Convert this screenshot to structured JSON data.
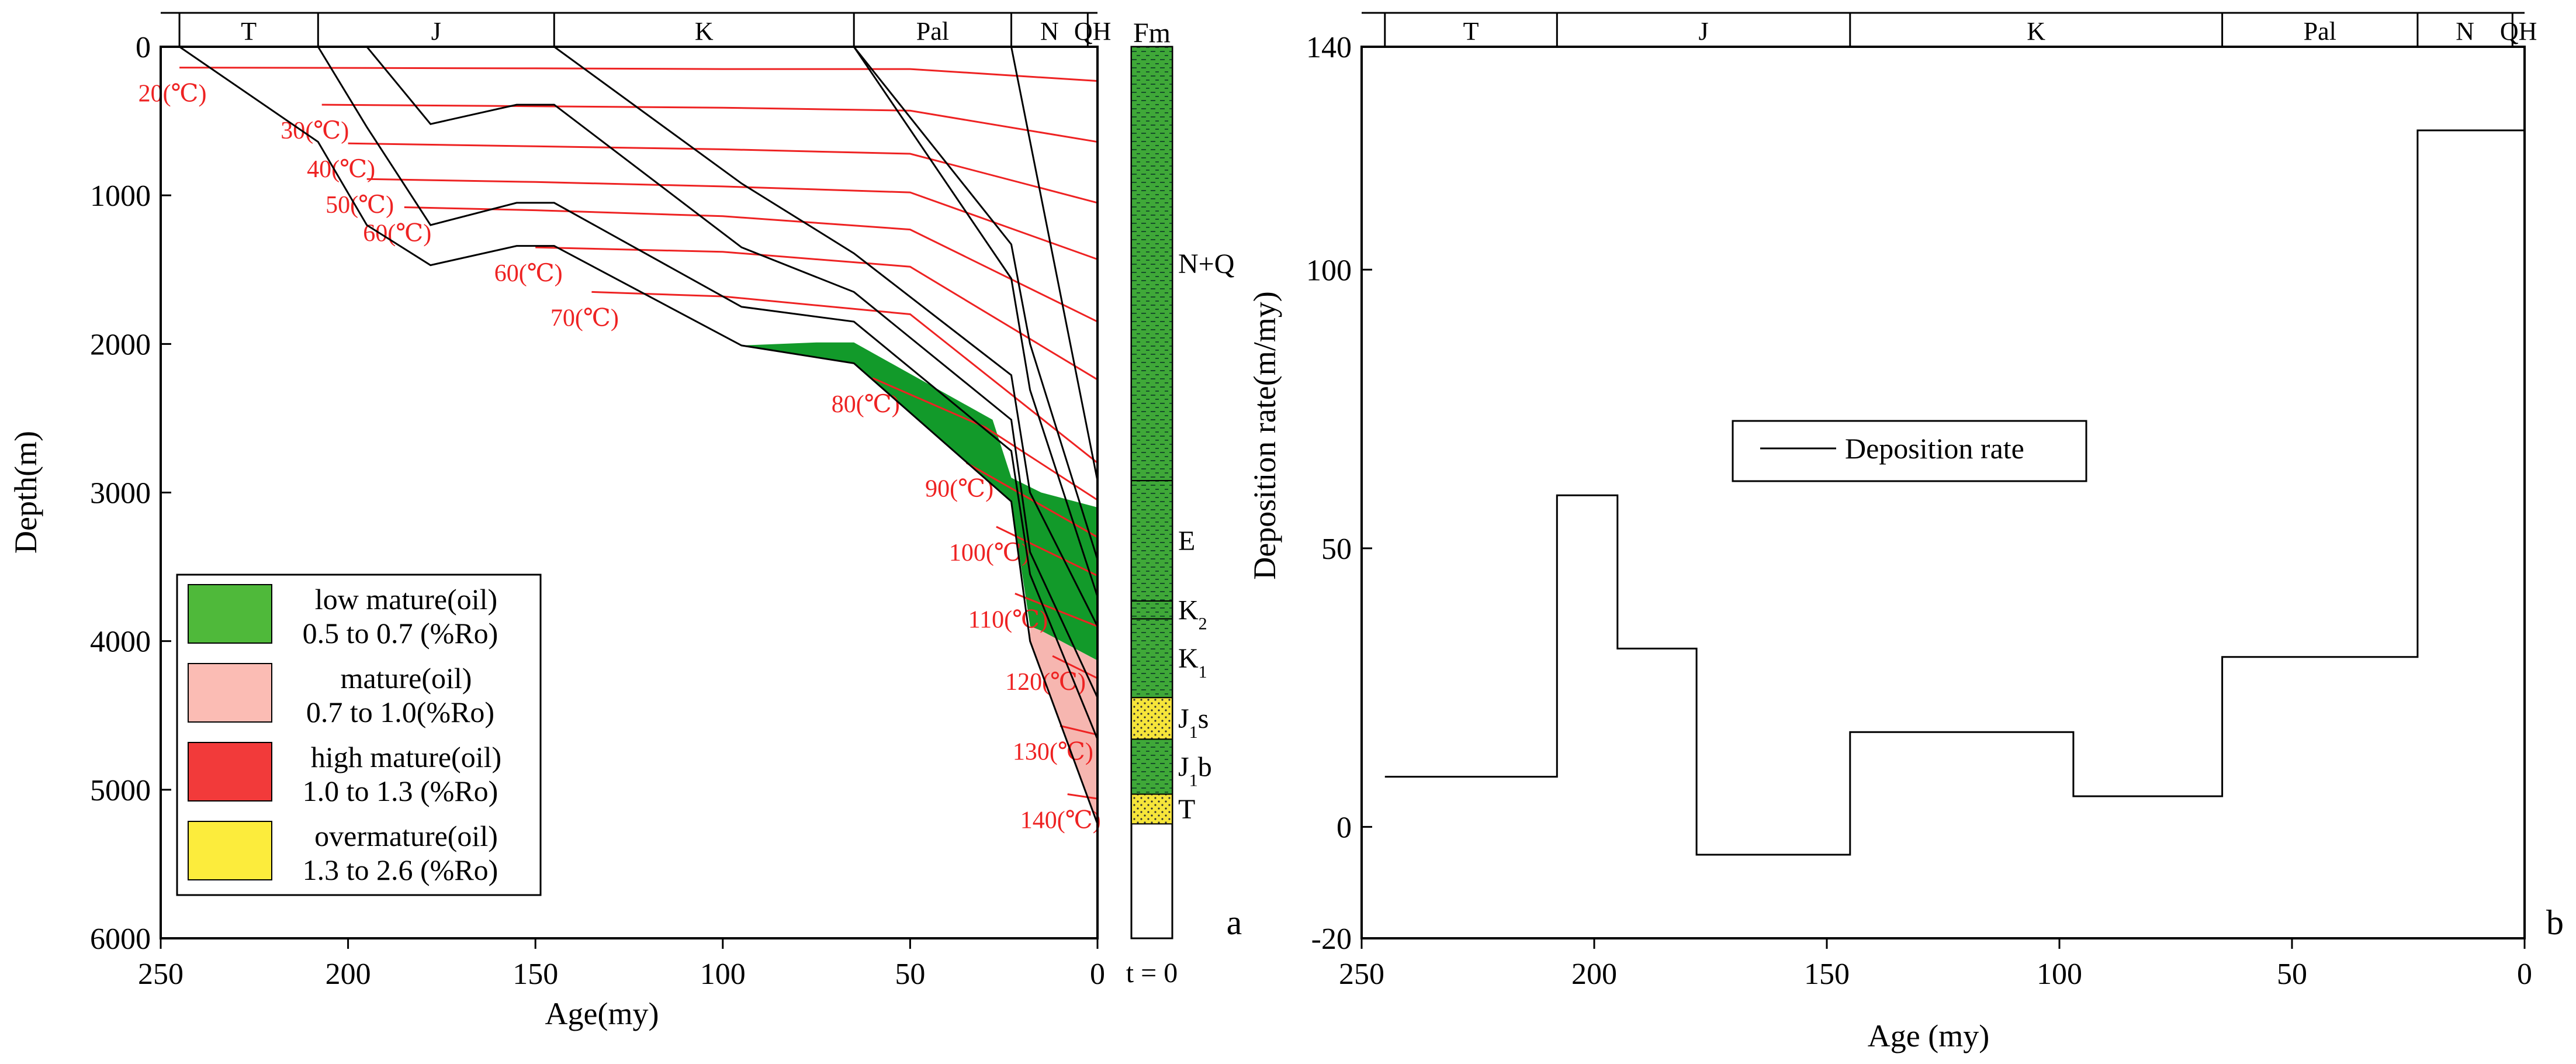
{
  "figure": {
    "panel_a_letter": "a",
    "panel_b_letter": "b"
  },
  "chart_data": [
    {
      "type": "line",
      "name": "burial-history",
      "title": "",
      "xlabel": "Age(my)",
      "ylabel": "Depth(m)",
      "xlim": [
        250,
        0
      ],
      "ylim": [
        0,
        6000
      ],
      "xticks": [
        250,
        200,
        150,
        100,
        50,
        0
      ],
      "yticks": [
        0,
        1000,
        2000,
        3000,
        4000,
        5000,
        6000
      ],
      "periods": [
        {
          "label": "T",
          "start": 245,
          "end": 208
        },
        {
          "label": "J",
          "start": 208,
          "end": 145
        },
        {
          "label": "K",
          "start": 145,
          "end": 65
        },
        {
          "label": "Pal",
          "start": 65,
          "end": 23
        },
        {
          "label": "N",
          "start": 23,
          "end": 2.6
        },
        {
          "label": "QH",
          "start": 2.6,
          "end": 0
        }
      ],
      "burial_curves": [
        {
          "name": "T",
          "points": [
            [
              245,
              0
            ],
            [
              208,
              640
            ],
            [
              195,
              1200
            ],
            [
              178,
              1470
            ],
            [
              155,
              1340
            ],
            [
              145,
              1340
            ],
            [
              95,
              2010
            ],
            [
              65,
              2130
            ],
            [
              23,
              3060
            ],
            [
              18,
              4000
            ],
            [
              0,
              5230
            ]
          ]
        },
        {
          "name": "J1b",
          "points": [
            [
              208,
              0
            ],
            [
              195,
              540
            ],
            [
              178,
              1200
            ],
            [
              155,
              1050
            ],
            [
              145,
              1050
            ],
            [
              95,
              1750
            ],
            [
              65,
              1850
            ],
            [
              23,
              2720
            ],
            [
              18,
              3550
            ],
            [
              0,
              4660
            ]
          ]
        },
        {
          "name": "J1s",
          "points": [
            [
              195,
              0
            ],
            [
              178,
              520
            ],
            [
              155,
              390
            ],
            [
              145,
              390
            ],
            [
              95,
              1350
            ],
            [
              65,
              1650
            ],
            [
              23,
              2510
            ],
            [
              18,
              3400
            ],
            [
              0,
              4380
            ]
          ]
        },
        {
          "name": "K1",
          "points": [
            [
              145,
              0
            ],
            [
              95,
              920
            ],
            [
              65,
              1390
            ],
            [
              23,
              2210
            ],
            [
              18,
              3000
            ],
            [
              0,
              3900
            ]
          ]
        },
        {
          "name": "K2",
          "points": [
            [
              65,
              0
            ],
            [
              23,
              1560
            ],
            [
              18,
              2310
            ],
            [
              0,
              3700
            ]
          ]
        },
        {
          "name": "E",
          "points": [
            [
              65,
              0
            ],
            [
              23,
              1330
            ],
            [
              18,
              2000
            ],
            [
              0,
              3450
            ]
          ]
        },
        {
          "name": "N+Q",
          "points": [
            [
              23,
              0
            ],
            [
              0,
              2920
            ]
          ]
        }
      ],
      "isotherms": [
        {
          "label": "20(℃)",
          "points": [
            [
              245,
              140
            ],
            [
              150,
              145
            ],
            [
              100,
              150
            ],
            [
              50,
              150
            ],
            [
              0,
              230
            ]
          ]
        },
        {
          "label": "30(℃)",
          "points": [
            [
              207,
              390
            ],
            [
              150,
              400
            ],
            [
              100,
              410
            ],
            [
              50,
              430
            ],
            [
              0,
              640
            ]
          ]
        },
        {
          "label": "40(℃)",
          "points": [
            [
              200,
              650
            ],
            [
              150,
              670
            ],
            [
              100,
              690
            ],
            [
              50,
              720
            ],
            [
              0,
              1050
            ]
          ]
        },
        {
          "label": "50(℃)",
          "points": [
            [
              195,
              890
            ],
            [
              150,
              910
            ],
            [
              100,
              940
            ],
            [
              50,
              980
            ],
            [
              0,
              1430
            ]
          ]
        },
        {
          "label": "60(℃)",
          "points": [
            [
              185,
              1080
            ],
            [
              150,
              1100
            ],
            [
              100,
              1140
            ],
            [
              50,
              1230
            ],
            [
              0,
              1850
            ]
          ]
        },
        {
          "label": "60(℃)",
          "points": [
            [
              150,
              1350
            ],
            [
              100,
              1380
            ],
            [
              50,
              1480
            ],
            [
              0,
              2240
            ]
          ]
        },
        {
          "label": "70(℃)",
          "points": [
            [
              135,
              1650
            ],
            [
              100,
              1680
            ],
            [
              50,
              1800
            ],
            [
              0,
              2800
            ]
          ]
        },
        {
          "label": "80(℃)",
          "points": [
            [
              60,
              2230
            ],
            [
              30,
              2560
            ],
            [
              0,
              3050
            ]
          ]
        },
        {
          "label": "90(℃)",
          "points": [
            [
              35,
              2800
            ],
            [
              0,
              3300
            ]
          ]
        },
        {
          "label": "100(℃)",
          "points": [
            [
              27,
              3230
            ],
            [
              0,
              3560
            ]
          ]
        },
        {
          "label": "110(℃)",
          "points": [
            [
              22,
              3680
            ],
            [
              0,
              3900
            ]
          ]
        },
        {
          "label": "120(℃)",
          "points": [
            [
              12,
              4100
            ],
            [
              0,
              4250
            ]
          ]
        },
        {
          "label": "130(℃)",
          "points": [
            [
              10,
              4570
            ],
            [
              0,
              4630
            ]
          ]
        },
        {
          "label": "140(℃)",
          "points": [
            [
              8,
              5030
            ],
            [
              0,
              5060
            ]
          ]
        }
      ],
      "maturity_zones": [
        {
          "name": "low mature",
          "color": "#129a2a",
          "points": [
            [
              95,
              2010
            ],
            [
              75,
              1990
            ],
            [
              65,
              1990
            ],
            [
              28,
              2510
            ],
            [
              23,
              2900
            ],
            [
              15,
              3000
            ],
            [
              0,
              3100
            ],
            [
              0,
              4130
            ],
            [
              15,
              3930
            ],
            [
              18,
              3900
            ],
            [
              23,
              3060
            ],
            [
              65,
              2130
            ],
            [
              95,
              2010
            ]
          ]
        },
        {
          "name": "mature",
          "color": "#f6b6b0",
          "points": [
            [
              18,
              3900
            ],
            [
              15,
              3930
            ],
            [
              0,
              4130
            ],
            [
              0,
              5230
            ],
            [
              18,
              4000
            ]
          ]
        }
      ],
      "legend": [
        {
          "line1": "low mature(oil)",
          "line2": "0.5 to 0.7 (%Ro)",
          "color": "#4fb93a"
        },
        {
          "line1": "mature(oil)",
          "line2": "0.7 to 1.0(%Ro)",
          "color": "#fbbcb4"
        },
        {
          "line1": "high mature(oil)",
          "line2": "1.0 to 1.3 (%Ro)",
          "color": "#f23a3a"
        },
        {
          "line1": "overmature(oil)",
          "line2": "1.3 to 2.6 (%Ro)",
          "color": "#fcec3c"
        }
      ],
      "formation_column": {
        "header": "Fm",
        "footer": "t = 0",
        "units": [
          {
            "label": "N+Q",
            "top": 0,
            "bottom": 2920,
            "fill": "green"
          },
          {
            "label": "E",
            "top": 2920,
            "bottom": 3730,
            "fill": "green"
          },
          {
            "label": "K2",
            "top": 3730,
            "bottom": 3850,
            "fill": "green"
          },
          {
            "label": "K1",
            "top": 3850,
            "bottom": 4380,
            "fill": "green"
          },
          {
            "label": "J1s",
            "top": 4380,
            "bottom": 4660,
            "fill": "yellow"
          },
          {
            "label": "J1b",
            "top": 4660,
            "bottom": 5030,
            "fill": "green"
          },
          {
            "label": "T",
            "top": 5030,
            "bottom": 5230,
            "fill": "yellow"
          }
        ],
        "unit_labels": {
          "N+Q": {
            "main": "N+Q",
            "sub": ""
          },
          "E": {
            "main": "E",
            "sub": ""
          },
          "K2": {
            "main": "K",
            "sub": "2"
          },
          "K1": {
            "main": "K",
            "sub": "1"
          },
          "J1s": {
            "main": "J",
            "sub": "1",
            "tail": "s"
          },
          "J1b": {
            "main": "J",
            "sub": "1",
            "tail": "b"
          },
          "T": {
            "main": "T",
            "sub": ""
          }
        }
      }
    },
    {
      "type": "line",
      "name": "deposition-rate",
      "title": "",
      "xlabel": "Age (my)",
      "ylabel": "Deposition rate(m/my)",
      "xlim": [
        250,
        0
      ],
      "ylim": [
        -20,
        140
      ],
      "xticks": [
        250,
        200,
        150,
        100,
        50,
        0
      ],
      "yticks": [
        -20,
        0,
        50,
        100,
        140
      ],
      "periods": [
        {
          "label": "T",
          "start": 245,
          "end": 208
        },
        {
          "label": "J",
          "start": 208,
          "end": 145
        },
        {
          "label": "K",
          "start": 145,
          "end": 65
        },
        {
          "label": "Pal",
          "start": 65,
          "end": 23
        },
        {
          "label": "N",
          "start": 23,
          "end": 2.6
        },
        {
          "label": "QH",
          "start": 2.6,
          "end": 0
        }
      ],
      "series": [
        {
          "name": "Deposition rate",
          "step": [
            {
              "from": 245,
              "to": 208,
              "value": 9
            },
            {
              "from": 208,
              "to": 195,
              "value": 59.5
            },
            {
              "from": 195,
              "to": 178,
              "value": 32
            },
            {
              "from": 178,
              "to": 145,
              "value": -5
            },
            {
              "from": 145,
              "to": 97,
              "value": 17
            },
            {
              "from": 97,
              "to": 65,
              "value": 5.5
            },
            {
              "from": 65,
              "to": 23,
              "value": 30.5
            },
            {
              "from": 23,
              "to": 0,
              "value": 125
            }
          ]
        }
      ],
      "legend_label": "Deposition rate"
    }
  ]
}
